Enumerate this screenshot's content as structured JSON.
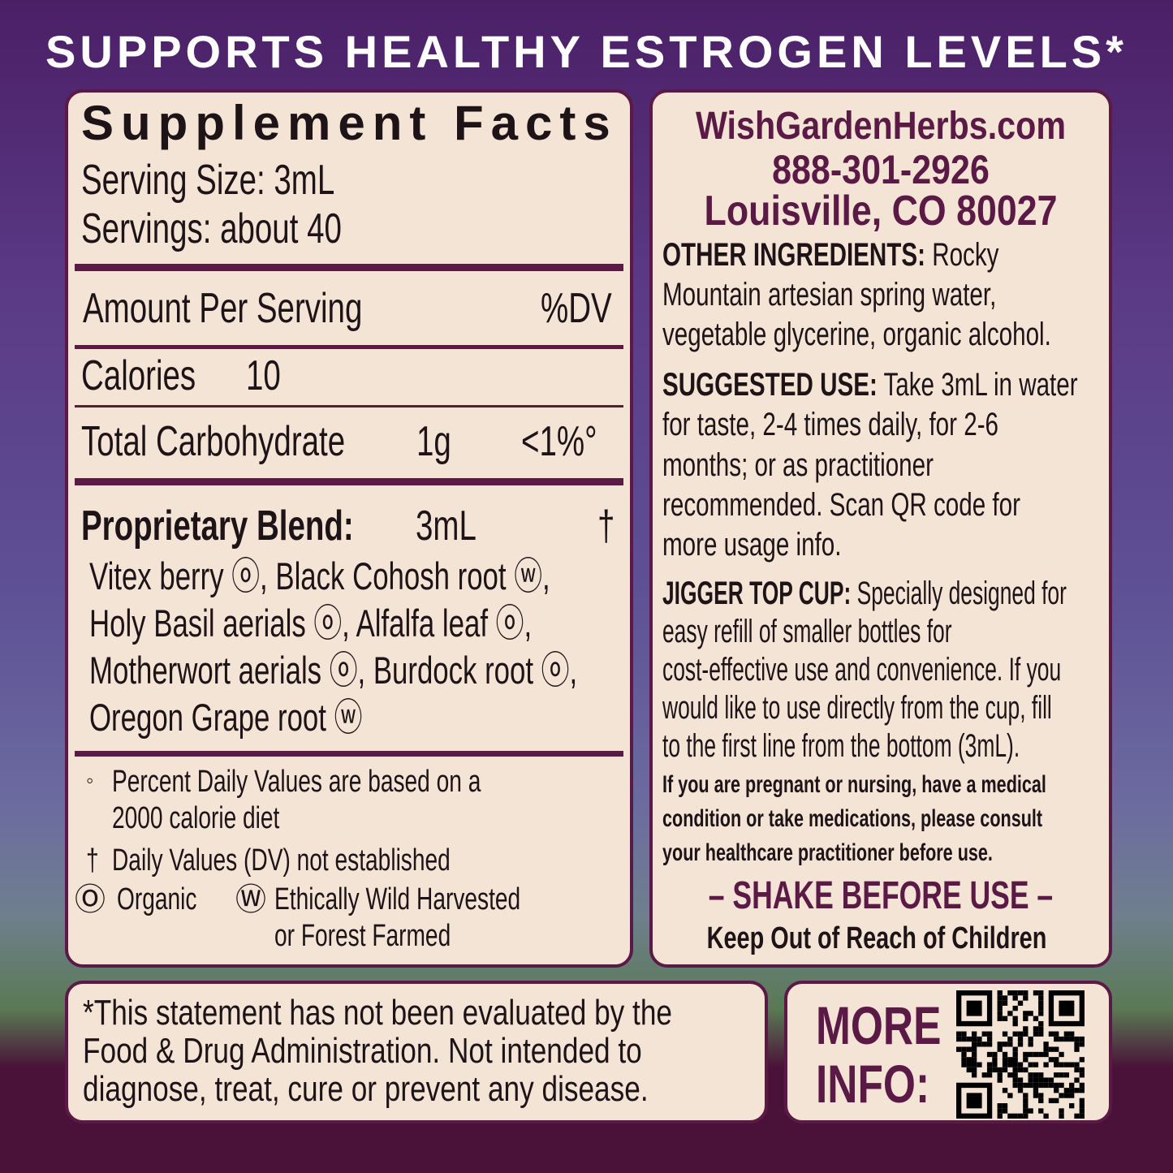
{
  "header": {
    "title": "SUPPORTS HEALTHY ESTROGEN LEVELS*"
  },
  "facts": {
    "title": "Supplement Facts",
    "serving_size": "Serving Size: 3mL",
    "servings": "Servings: about 40",
    "amount_header": "Amount Per Serving",
    "dv_header": "%DV",
    "rows": [
      {
        "name": "Calories",
        "amount": "10"
      },
      {
        "name": "Total Carbohydrate",
        "amount": "1g",
        "dv": "<1%°"
      }
    ],
    "blend": {
      "name": "Proprietary Blend:",
      "amount": "3mL",
      "dv": "†",
      "lines": [
        "Vitex berry ⓞ, Black Cohosh root ⓦ,",
        "Holy Basil aerials ⓞ, Alfalfa leaf ⓞ,",
        "Motherwort aerials ⓞ, Burdock root ⓞ,",
        "Oregon Grape root ⓦ"
      ]
    },
    "footnotes": {
      "dv_mark": "◦",
      "dv_lines": [
        "Percent Daily Values are based on a",
        "2000 calorie diet"
      ],
      "dagger_mark": "†",
      "dagger_text": "Daily Values (DV) not established",
      "organic_mark": "Ⓞ",
      "organic": "Organic",
      "wild_mark": "Ⓦ",
      "wild_lines": [
        "Ethically Wild Harvested",
        "or Forest Farmed"
      ]
    }
  },
  "contact": {
    "website": "WishGardenHerbs.com",
    "phone": "888-301-2926",
    "address": "Louisville, CO 80027"
  },
  "other_ingredients": {
    "label": "OTHER INGREDIENTS:",
    "lines": [
      " Rocky",
      "Mountain artesian spring water,",
      "vegetable glycerine, organic alcohol."
    ]
  },
  "suggested_use": {
    "label": "SUGGESTED USE:",
    "lines": [
      " Take 3mL in water",
      "for taste, 2-4 times daily, for 2-6",
      "months; or as practitioner",
      "recommended. Scan QR code for",
      "more usage info."
    ]
  },
  "jigger": {
    "label": "JIGGER TOP CUP:",
    "lines": [
      " Specially designed for",
      "easy refill of smaller bottles for",
      "cost-effective use and convenience. If you",
      "would like to use directly from the cup, fill",
      "to the first line from the bottom (3mL)."
    ]
  },
  "warning": [
    "If you are pregnant or nursing, have a medical",
    "condition or take medications, please consult",
    "your healthcare practitioner before use."
  ],
  "shake": "– SHAKE BEFORE USE –",
  "keep_out": "Keep Out of Reach of Children",
  "disclaimer": [
    "*This statement has not been evaluated by the",
    "Food & Drug Administration. Not intended to",
    "diagnose, treat, cure or prevent any disease."
  ],
  "more_info": [
    "MORE",
    "INFO:"
  ]
}
